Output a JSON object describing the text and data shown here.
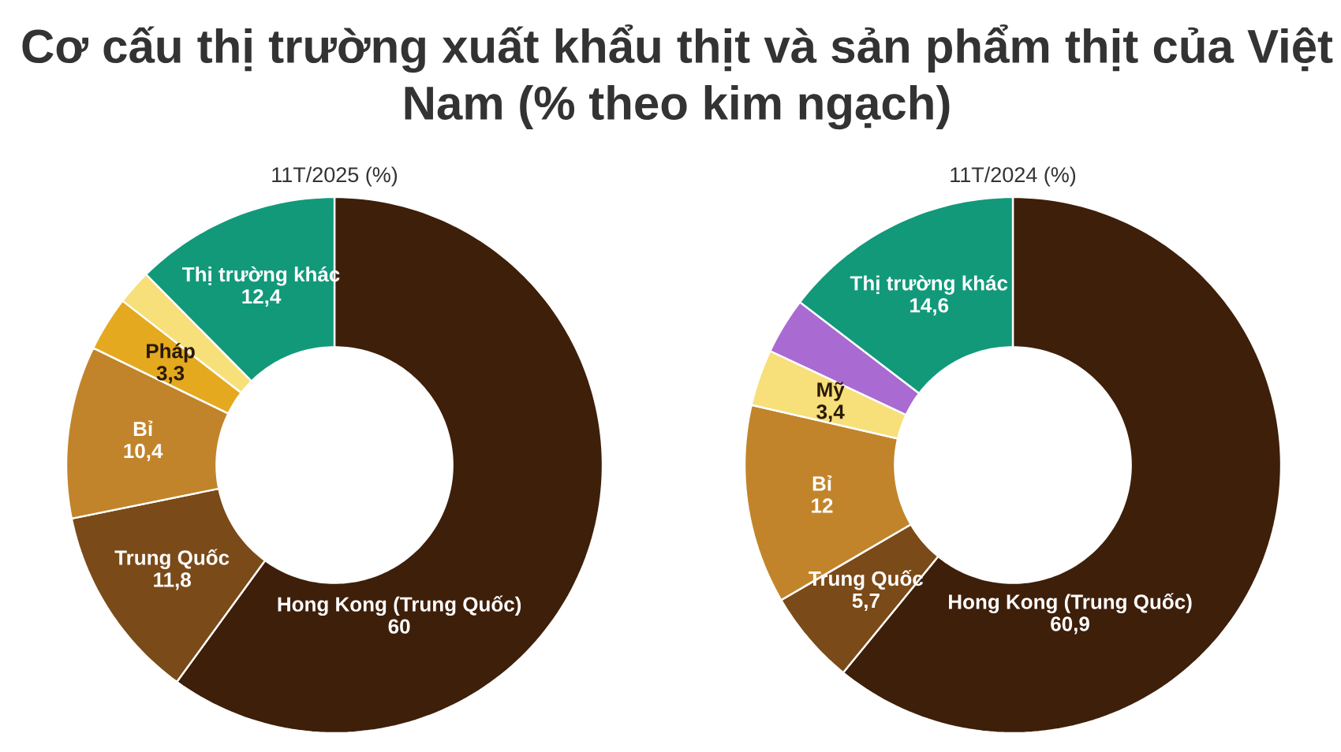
{
  "chart_data": [
    {
      "type": "donut",
      "title": "Cơ cấu thị trường xuất khẩu thịt và sản phẩm thịt của Việt Nam (% theo kim ngạch)",
      "subtitle": "11T/2025 (%)",
      "categories": [
        "Hong Kong (Trung Quốc)",
        "Trung Quốc",
        "Bỉ",
        "Pháp",
        null,
        "Thị trường khác"
      ],
      "values": [
        60,
        11.8,
        10.4,
        3.3,
        2.1,
        12.4
      ],
      "value_labels": [
        "60",
        "11,8",
        "10,4",
        "3,3",
        null,
        "12,4"
      ],
      "colors": [
        "#3e1f0a",
        "#7a4a18",
        "#c2842a",
        "#e4a91e",
        "#f7df7a",
        "#11997a"
      ]
    },
    {
      "type": "donut",
      "subtitle": "11T/2024 (%)",
      "categories": [
        "Hong Kong (Trung Quốc)",
        "Trung Quốc",
        "Bỉ",
        "Mỹ",
        null,
        "Thị trường khác"
      ],
      "values": [
        60.9,
        5.7,
        12,
        3.4,
        3.4,
        14.6
      ],
      "value_labels": [
        "60,9",
        "5,7",
        "12",
        "3,4",
        null,
        "14,6"
      ],
      "colors": [
        "#3e1f0a",
        "#7a4a18",
        "#c2842a",
        "#f7df7a",
        "#a96ad2",
        "#11997a"
      ]
    }
  ]
}
